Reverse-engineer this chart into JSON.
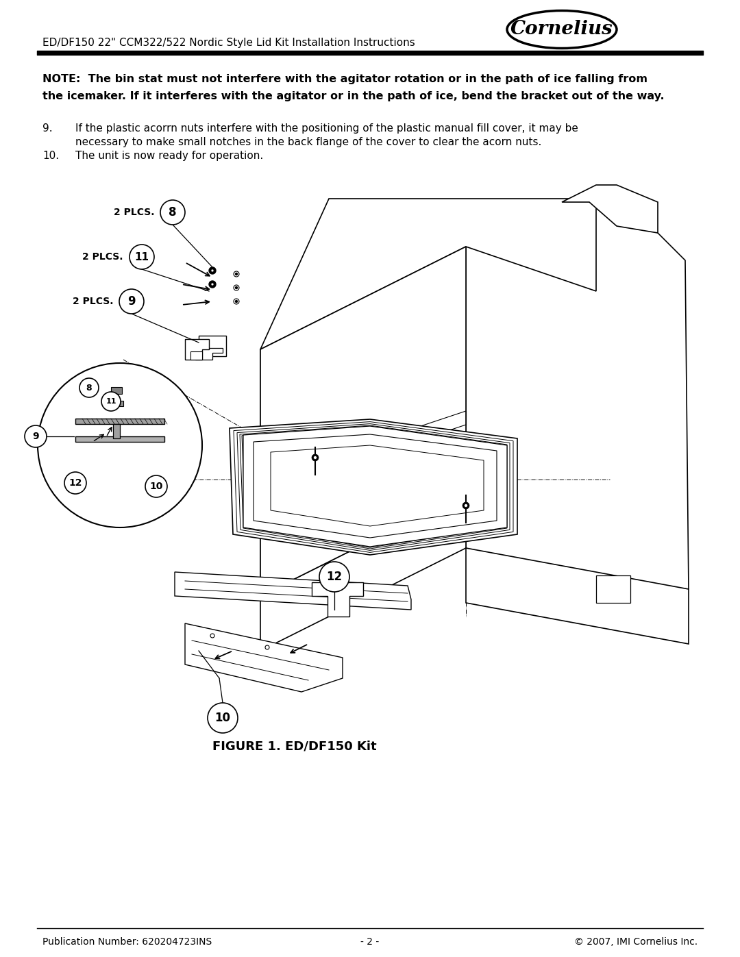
{
  "bg_color": "#ffffff",
  "header_line_title": "ED/DF150 22\" CCM322/522 Nordic Style Lid Kit Installation Instructions",
  "logo_text": "Cornelius",
  "note_bold_line1": "NOTE:  The bin stat must not interfere with the agitator rotation or in the path of ice falling from",
  "note_bold_line2": "the icemaker. If it interferes with the agitator or in the path of ice, bend the bracket out of the way.",
  "step9_num": "9.",
  "step9_line1": "If the plastic acorrn nuts interfere with the positioning of the plastic manual fill cover, it may be",
  "step9_line2": "necessary to make small notches in the back flange of the cover to clear the acorn nuts.",
  "step10_num": "10.",
  "step10_text": "The unit is now ready for operation.",
  "figure_caption": "FIGURE 1. ED/DF150 Kit",
  "footer_left": "Publication Number: 620204723INS",
  "footer_center": "- 2 -",
  "footer_right": "© 2007, IMI Cornelius Inc."
}
